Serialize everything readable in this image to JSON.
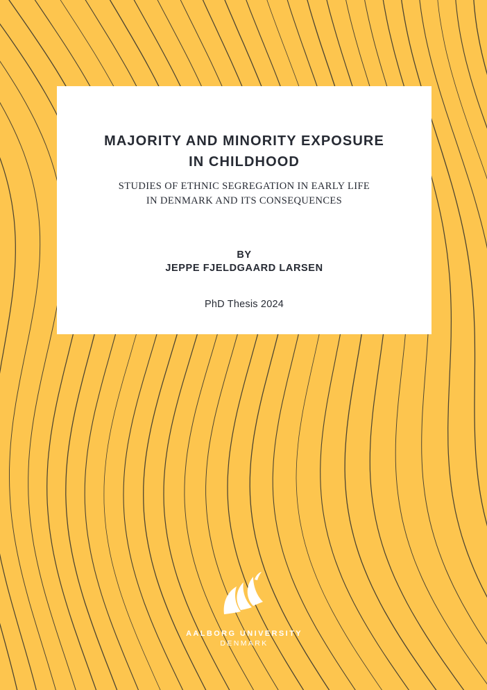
{
  "cover": {
    "background_color": "#fdc54e",
    "wave_color": "#2b2b2b",
    "title_lines": [
      "MAJORITY AND MINORITY EXPOSURE",
      "IN CHILDHOOD"
    ],
    "subtitle_lines": [
      "STUDIES OF ETHNIC SEGREGATION IN EARLY LIFE",
      "IN DENMARK AND ITS CONSEQUENCES"
    ],
    "by_label": "BY",
    "author": "JEPPE FJELDGAARD LARSEN",
    "thesis_line": "PhD Thesis 2024"
  },
  "logo": {
    "icon": "aalborg-university-wave-logo-icon",
    "name": "AALBORG UNIVERSITY",
    "country": "DENMARK"
  }
}
